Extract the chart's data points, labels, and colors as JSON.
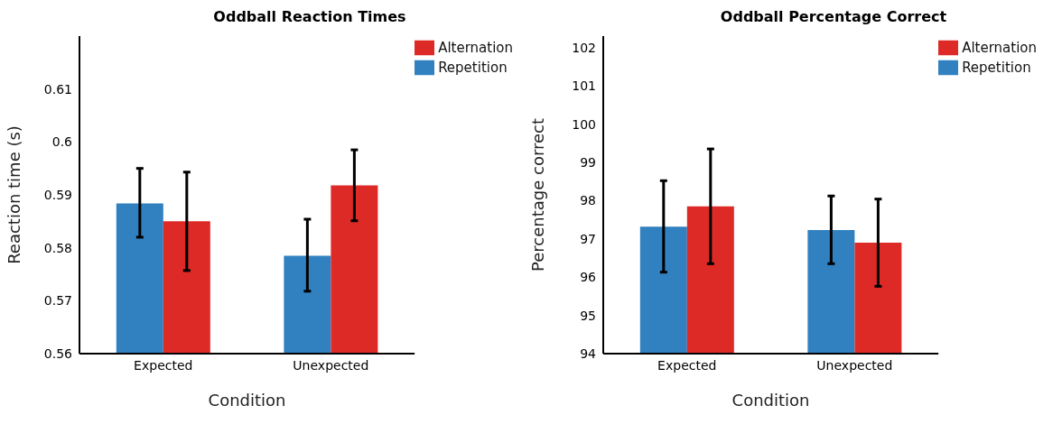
{
  "chart_data": [
    {
      "type": "bar",
      "title": "Oddball Reaction Times",
      "xlabel": "Condition",
      "ylabel": "Reaction time (s)",
      "categories": [
        "Expected",
        "Unexpected"
      ],
      "series": [
        {
          "name": "Repetition",
          "color": "#3181c0",
          "values": [
            0.5884,
            0.5785
          ],
          "errors": [
            [
              0.582,
              0.595
            ],
            [
              0.5718,
              0.5854
            ]
          ]
        },
        {
          "name": "Alternation",
          "color": "#de2a26",
          "values": [
            0.585,
            0.5918
          ],
          "errors": [
            [
              0.5757,
              0.5943
            ],
            [
              0.5851,
              0.5985
            ]
          ]
        }
      ],
      "ylim": [
        0.56,
        0.62
      ],
      "yticks": [
        0.56,
        0.57,
        0.58,
        0.59,
        0.6,
        0.61
      ],
      "grid": false,
      "legend": "top right"
    },
    {
      "type": "bar",
      "title": "Oddball Percentage Correct",
      "xlabel": "Condition",
      "ylabel": "Percentage correct",
      "categories": [
        "Expected",
        "Unexpected"
      ],
      "series": [
        {
          "name": "Repetition",
          "color": "#3181c0",
          "values": [
            97.32,
            97.23
          ],
          "errors": [
            [
              96.13,
              98.52
            ],
            [
              96.35,
              98.12
            ]
          ]
        },
        {
          "name": "Alternation",
          "color": "#de2a26",
          "values": [
            97.85,
            96.9
          ],
          "errors": [
            [
              96.35,
              99.35
            ],
            [
              95.76,
              98.04
            ]
          ]
        }
      ],
      "ylim": [
        94,
        102.3
      ],
      "yticks": [
        94,
        95,
        96,
        97,
        98,
        99,
        100,
        101,
        102
      ],
      "grid": false,
      "legend": "top right"
    }
  ]
}
